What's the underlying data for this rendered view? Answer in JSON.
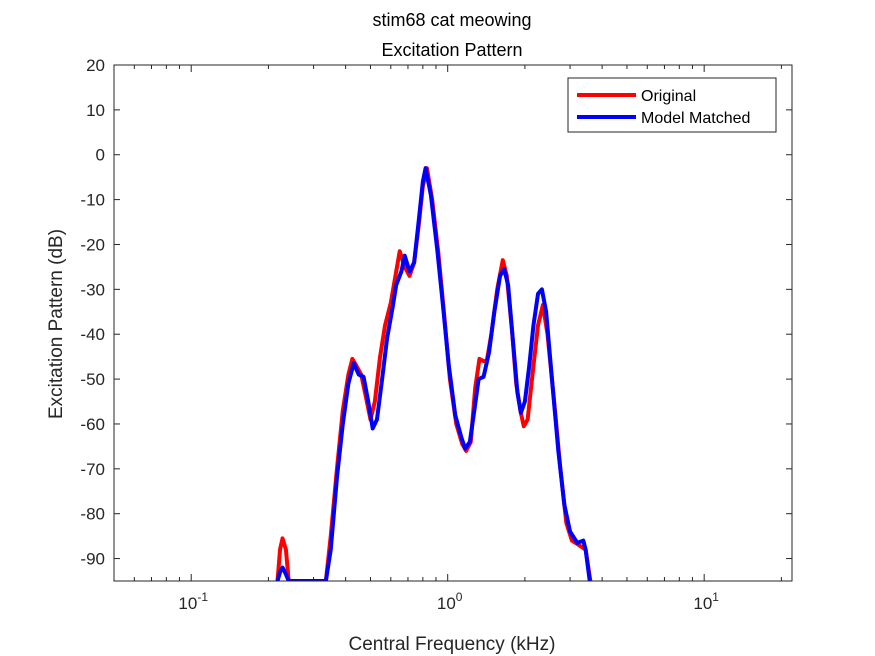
{
  "chart_data": {
    "type": "line",
    "title": "stim68 cat meowing",
    "subtitle": "Excitation Pattern",
    "xlabel": "Central Frequency (kHz)",
    "ylabel": "Excitation Pattern (dB)",
    "xscale": "log",
    "xlim": [
      0.05,
      22
    ],
    "ylim": [
      -95,
      20
    ],
    "yticks": [
      20,
      10,
      0,
      -10,
      -20,
      -30,
      -40,
      -50,
      -60,
      -70,
      -80,
      -90
    ],
    "xticks": [
      {
        "value": 0.1,
        "base": "10",
        "exp": "-1"
      },
      {
        "value": 1,
        "base": "10",
        "exp": "0"
      },
      {
        "value": 10,
        "base": "10",
        "exp": "1"
      }
    ],
    "legend": {
      "position": "top-right"
    },
    "grid": false,
    "series": [
      {
        "name": "Original",
        "color": "#ff0000",
        "points": [
          [
            0.217,
            -95
          ],
          [
            0.222,
            -88
          ],
          [
            0.227,
            -85.5
          ],
          [
            0.234,
            -88
          ],
          [
            0.24,
            -95
          ],
          [
            0.335,
            -95
          ],
          [
            0.35,
            -85
          ],
          [
            0.37,
            -70
          ],
          [
            0.39,
            -57
          ],
          [
            0.41,
            -49
          ],
          [
            0.425,
            -45.5
          ],
          [
            0.44,
            -47
          ],
          [
            0.46,
            -49
          ],
          [
            0.48,
            -54
          ],
          [
            0.5,
            -59
          ],
          [
            0.52,
            -55
          ],
          [
            0.545,
            -45
          ],
          [
            0.57,
            -38
          ],
          [
            0.6,
            -33
          ],
          [
            0.63,
            -26
          ],
          [
            0.65,
            -21.5
          ],
          [
            0.68,
            -25
          ],
          [
            0.71,
            -27
          ],
          [
            0.74,
            -24
          ],
          [
            0.77,
            -16
          ],
          [
            0.8,
            -7
          ],
          [
            0.83,
            -3
          ],
          [
            0.87,
            -10
          ],
          [
            0.92,
            -22
          ],
          [
            0.97,
            -36
          ],
          [
            1.02,
            -50
          ],
          [
            1.08,
            -60
          ],
          [
            1.14,
            -64.5
          ],
          [
            1.18,
            -66
          ],
          [
            1.23,
            -64
          ],
          [
            1.28,
            -52
          ],
          [
            1.33,
            -45.5
          ],
          [
            1.38,
            -46
          ],
          [
            1.42,
            -46
          ],
          [
            1.48,
            -40
          ],
          [
            1.56,
            -30
          ],
          [
            1.64,
            -23.5
          ],
          [
            1.7,
            -27
          ],
          [
            1.78,
            -39
          ],
          [
            1.85,
            -51
          ],
          [
            1.92,
            -57
          ],
          [
            1.98,
            -60.5
          ],
          [
            2.05,
            -59
          ],
          [
            2.15,
            -48
          ],
          [
            2.25,
            -38
          ],
          [
            2.35,
            -33.5
          ],
          [
            2.45,
            -40
          ],
          [
            2.6,
            -55
          ],
          [
            2.75,
            -70
          ],
          [
            2.9,
            -82
          ],
          [
            3.05,
            -86
          ],
          [
            3.25,
            -87
          ],
          [
            3.45,
            -88
          ],
          [
            3.6,
            -95
          ]
        ]
      },
      {
        "name": "Model Matched",
        "color": "#0000ff",
        "points": [
          [
            0.217,
            -95
          ],
          [
            0.222,
            -93
          ],
          [
            0.227,
            -92
          ],
          [
            0.234,
            -93.5
          ],
          [
            0.24,
            -95
          ],
          [
            0.335,
            -95
          ],
          [
            0.35,
            -88
          ],
          [
            0.37,
            -72
          ],
          [
            0.39,
            -60
          ],
          [
            0.41,
            -51
          ],
          [
            0.43,
            -46.5
          ],
          [
            0.45,
            -49
          ],
          [
            0.47,
            -49.5
          ],
          [
            0.49,
            -55
          ],
          [
            0.51,
            -61
          ],
          [
            0.53,
            -59
          ],
          [
            0.555,
            -50
          ],
          [
            0.58,
            -41
          ],
          [
            0.61,
            -34
          ],
          [
            0.63,
            -29
          ],
          [
            0.66,
            -26
          ],
          [
            0.68,
            -22.5
          ],
          [
            0.71,
            -26
          ],
          [
            0.74,
            -24
          ],
          [
            0.77,
            -15
          ],
          [
            0.8,
            -6
          ],
          [
            0.82,
            -3
          ],
          [
            0.86,
            -9
          ],
          [
            0.91,
            -21
          ],
          [
            0.96,
            -34
          ],
          [
            1.01,
            -47
          ],
          [
            1.07,
            -58
          ],
          [
            1.13,
            -63
          ],
          [
            1.17,
            -65.5
          ],
          [
            1.22,
            -64
          ],
          [
            1.27,
            -57
          ],
          [
            1.32,
            -50
          ],
          [
            1.38,
            -49.5
          ],
          [
            1.45,
            -44
          ],
          [
            1.52,
            -35
          ],
          [
            1.6,
            -27
          ],
          [
            1.66,
            -25.5
          ],
          [
            1.72,
            -29
          ],
          [
            1.8,
            -42
          ],
          [
            1.87,
            -53
          ],
          [
            1.93,
            -57.5
          ],
          [
            2.0,
            -55
          ],
          [
            2.08,
            -47
          ],
          [
            2.16,
            -38
          ],
          [
            2.25,
            -31
          ],
          [
            2.33,
            -30
          ],
          [
            2.42,
            -35
          ],
          [
            2.55,
            -50
          ],
          [
            2.7,
            -66
          ],
          [
            2.85,
            -78
          ],
          [
            3.0,
            -84
          ],
          [
            3.2,
            -86.5
          ],
          [
            3.38,
            -86
          ],
          [
            3.45,
            -88
          ],
          [
            3.58,
            -95
          ]
        ]
      }
    ]
  }
}
